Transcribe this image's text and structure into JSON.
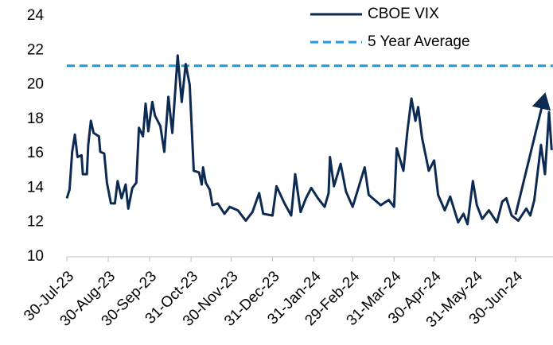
{
  "chart_data": {
    "type": "line",
    "x": [
      "2023-07-30",
      "2023-08-01",
      "2023-08-03",
      "2023-08-05",
      "2023-08-07",
      "2023-08-10",
      "2023-08-11",
      "2023-08-14",
      "2023-08-15",
      "2023-08-17",
      "2023-08-19",
      "2023-08-23",
      "2023-08-24",
      "2023-08-27",
      "2023-08-29",
      "2023-09-01",
      "2023-09-04",
      "2023-09-06",
      "2023-09-09",
      "2023-09-12",
      "2023-09-14",
      "2023-09-17",
      "2023-09-20",
      "2023-09-22",
      "2023-09-25",
      "2023-09-27",
      "2023-09-29",
      "2023-10-02",
      "2023-10-04",
      "2023-10-08",
      "2023-10-11",
      "2023-10-14",
      "2023-10-17",
      "2023-10-21",
      "2023-10-24",
      "2023-10-27",
      "2023-10-30",
      "2023-11-02",
      "2023-11-06",
      "2023-11-08",
      "2023-11-09",
      "2023-11-11",
      "2023-11-14",
      "2023-11-16",
      "2023-11-20",
      "2023-11-25",
      "2023-11-29",
      "2023-12-05",
      "2023-12-11",
      "2023-12-16",
      "2023-12-21",
      "2023-12-24",
      "2023-12-31",
      "2024-01-03",
      "2024-01-09",
      "2024-01-14",
      "2024-01-17",
      "2024-01-21",
      "2024-01-25",
      "2024-01-29",
      "2024-02-03",
      "2024-02-08",
      "2024-02-11",
      "2024-02-12",
      "2024-02-15",
      "2024-02-20",
      "2024-02-24",
      "2024-02-29",
      "2024-03-09",
      "2024-03-12",
      "2024-03-21",
      "2024-03-27",
      "2024-03-31",
      "2024-04-02",
      "2024-04-07",
      "2024-04-10",
      "2024-04-13",
      "2024-04-16",
      "2024-04-18",
      "2024-04-21",
      "2024-04-26",
      "2024-04-30",
      "2024-05-03",
      "2024-05-08",
      "2024-05-12",
      "2024-05-18",
      "2024-05-22",
      "2024-05-25",
      "2024-05-29",
      "2024-06-01",
      "2024-06-05",
      "2024-06-10",
      "2024-06-16",
      "2024-06-20",
      "2024-06-23",
      "2024-06-27",
      "2024-07-02",
      "2024-07-08",
      "2024-07-11",
      "2024-07-14",
      "2024-07-19",
      "2024-07-22",
      "2024-07-25",
      "2024-07-27"
    ],
    "series": [
      {
        "name": "CBOE VIX",
        "color": "#0d2a52",
        "values": [
          13.4,
          13.9,
          16.1,
          17.1,
          15.8,
          15.9,
          14.8,
          14.8,
          16.5,
          17.9,
          17.2,
          17.0,
          16.1,
          16.0,
          14.3,
          13.1,
          13.1,
          14.4,
          13.4,
          14.2,
          12.8,
          14.0,
          14.3,
          17.5,
          17.0,
          18.9,
          17.3,
          19.0,
          18.2,
          17.6,
          16.1,
          19.3,
          17.2,
          21.7,
          19.0,
          21.2,
          20.0,
          15.0,
          14.9,
          14.2,
          15.2,
          14.3,
          13.9,
          13.0,
          13.1,
          12.5,
          12.9,
          12.7,
          12.1,
          12.6,
          13.7,
          12.5,
          12.4,
          14.1,
          13.1,
          12.4,
          14.8,
          12.6,
          13.4,
          14.0,
          13.4,
          12.9,
          13.7,
          15.8,
          14.1,
          15.4,
          13.8,
          12.9,
          15.2,
          13.6,
          13.0,
          13.3,
          12.9,
          16.3,
          15.0,
          17.3,
          19.2,
          17.9,
          18.7,
          16.9,
          15.0,
          15.6,
          13.6,
          12.7,
          13.5,
          12.0,
          12.5,
          11.9,
          14.4,
          13.0,
          12.2,
          12.7,
          12.0,
          13.2,
          13.4,
          12.4,
          12.1,
          12.8,
          12.4,
          13.3,
          16.5,
          14.8,
          18.4,
          16.2
        ]
      }
    ],
    "reference_lines": [
      {
        "name": "5 Year Average",
        "value": 21.1,
        "color": "#1a9ad6",
        "dashed": true
      }
    ],
    "xlim": [
      "2023-07-30",
      "2024-07-28"
    ],
    "xticks": [
      {
        "value": "2023-07-30",
        "label": "30-Jul-23"
      },
      {
        "value": "2023-08-30",
        "label": "30-Aug-23"
      },
      {
        "value": "2023-09-30",
        "label": "30-Sep-23"
      },
      {
        "value": "2023-10-31",
        "label": "31-Oct-23"
      },
      {
        "value": "2023-11-30",
        "label": "30-Nov-23"
      },
      {
        "value": "2023-12-31",
        "label": "31-Dec-23"
      },
      {
        "value": "2024-01-31",
        "label": "31-Jan-24"
      },
      {
        "value": "2024-02-29",
        "label": "29-Feb-24"
      },
      {
        "value": "2024-03-31",
        "label": "31-Mar-24"
      },
      {
        "value": "2024-04-30",
        "label": "30-Apr-24"
      },
      {
        "value": "2024-05-31",
        "label": "31-May-24"
      },
      {
        "value": "2024-06-30",
        "label": "30-Jun-24"
      }
    ],
    "ylim": [
      10,
      24
    ],
    "yticks": [
      10,
      12,
      14,
      16,
      18,
      20,
      22,
      24
    ],
    "legend": "top-right"
  }
}
